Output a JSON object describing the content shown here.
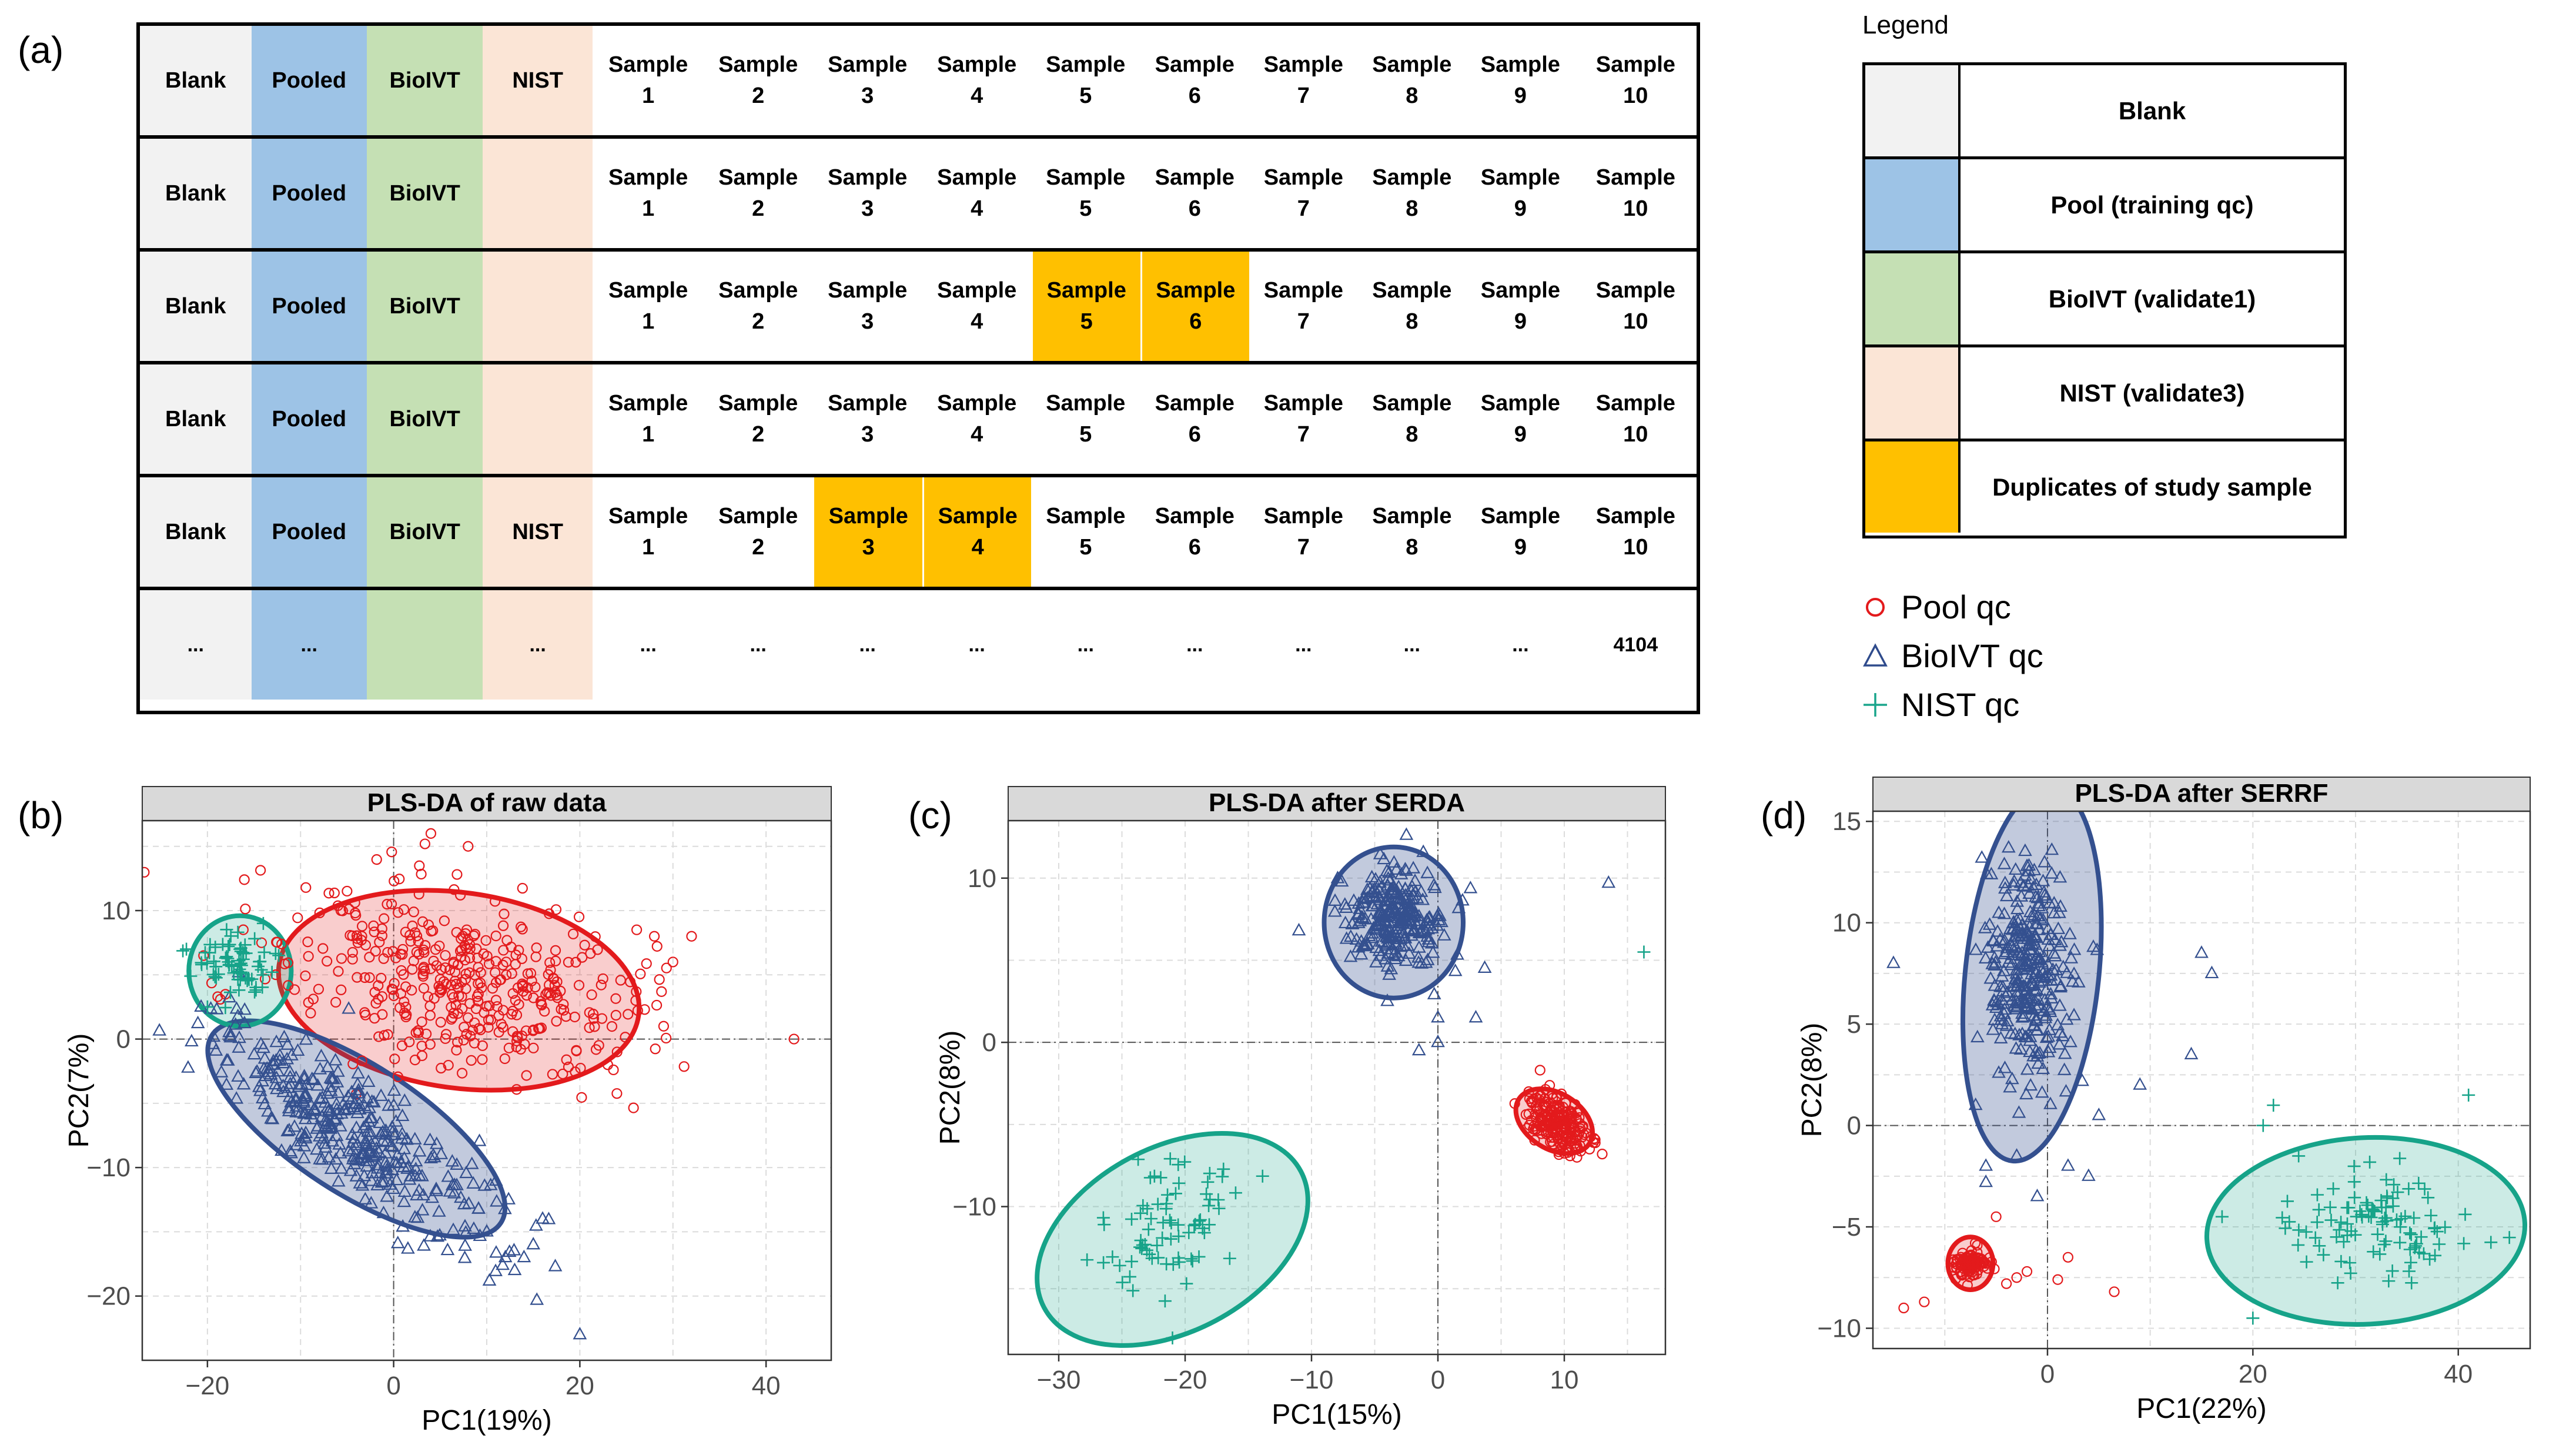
{
  "panel_labels": {
    "a": "(a)",
    "b": "(b)",
    "c": "(c)",
    "d": "(d)"
  },
  "plate": {
    "rows": [
      {
        "cells": [
          "Blank",
          "Pooled",
          "BioIVT",
          "NIST",
          "Sample\n1",
          "Sample\n2",
          "Sample\n3",
          "Sample\n4",
          "Sample\n5",
          "Sample\n6",
          "Sample\n7",
          "Sample\n8",
          "Sample\n9",
          "Sample\n10"
        ],
        "highlight": []
      },
      {
        "cells": [
          "Blank",
          "Pooled",
          "BioIVT",
          "",
          "Sample\n1",
          "Sample\n2",
          "Sample\n3",
          "Sample\n4",
          "Sample\n5",
          "Sample\n6",
          "Sample\n7",
          "Sample\n8",
          "Sample\n9",
          "Sample\n10"
        ],
        "highlight": []
      },
      {
        "cells": [
          "Blank",
          "Pooled",
          "BioIVT",
          "",
          "Sample\n1",
          "Sample\n2",
          "Sample\n3",
          "Sample\n4",
          "Sample\n5",
          "Sample\n6",
          "Sample\n7",
          "Sample\n8",
          "Sample\n9",
          "Sample\n10"
        ],
        "highlight": [
          8,
          9
        ]
      },
      {
        "cells": [
          "Blank",
          "Pooled",
          "BioIVT",
          "",
          "Sample\n1",
          "Sample\n2",
          "Sample\n3",
          "Sample\n4",
          "Sample\n5",
          "Sample\n6",
          "Sample\n7",
          "Sample\n8",
          "Sample\n9",
          "Sample\n10"
        ],
        "highlight": []
      },
      {
        "cells": [
          "Blank",
          "Pooled",
          "BioIVT",
          "NIST",
          "Sample\n1",
          "Sample\n2",
          "Sample\n3",
          "Sample\n4",
          "Sample\n5",
          "Sample\n6",
          "Sample\n7",
          "Sample\n8",
          "Sample\n9",
          "Sample\n10"
        ],
        "highlight": [
          6,
          7
        ]
      },
      {
        "cells": [
          "...",
          "...",
          "",
          "...",
          "...",
          "...",
          "...",
          "...",
          "...",
          "...",
          "...",
          "...",
          "...",
          "4104"
        ],
        "highlight": []
      }
    ],
    "column_colors": [
      "#f2f2f2",
      "#9dc3e6",
      "#c5e0b4",
      "#fbe5d6"
    ],
    "highlight_color": "#ffc000"
  },
  "legend": {
    "title": "Legend",
    "items": [
      {
        "label": "Blank",
        "color": "#f2f2f2"
      },
      {
        "label": "Pool (training qc)",
        "color": "#9dc3e6"
      },
      {
        "label": "BioIVT (validate1)",
        "color": "#c5e0b4"
      },
      {
        "label": "NIST (validate3)",
        "color": "#fbe5d6"
      },
      {
        "label": "Duplicates of study sample",
        "color": "#ffc000"
      }
    ]
  },
  "symbol_legend": [
    {
      "label": "Pool  qc",
      "symbol": "circle",
      "color": "#e31a1c"
    },
    {
      "label": "BioIVT qc",
      "symbol": "triangle",
      "color": "#2f4b8c"
    },
    {
      "label": "NIST qc",
      "symbol": "plus",
      "color": "#1aa58c"
    }
  ],
  "colors": {
    "pool": "#e31a1c",
    "bioivt": "#34508f",
    "nist": "#16a389",
    "grid": "#dcdcdc",
    "strip": "#d9d9d9"
  },
  "chart_data": [
    {
      "type": "scatter",
      "title": "PLS-DA of raw data",
      "xlabel": "PC1(19%)",
      "ylabel": "PC2(7%)",
      "xlim": [
        -27,
        47
      ],
      "ylim": [
        -25,
        17
      ],
      "xticks": [
        -20,
        0,
        20,
        40
      ],
      "yticks": [
        -20,
        -10,
        0,
        10
      ],
      "groups": [
        {
          "name": "Pool qc",
          "symbol": "circle",
          "n": 420,
          "center": [
            7,
            4.5
          ],
          "spread": [
            10,
            3.5
          ],
          "angle": -8,
          "ellipse": {
            "cx": 7,
            "cy": 3.8,
            "rx": 19.5,
            "ry": 7.6,
            "angle": -8
          },
          "outliers": [
            [
              4,
              16
            ],
            [
              8,
              15
            ],
            [
              28,
              8
            ],
            [
              30,
              6
            ],
            [
              32,
              8
            ],
            [
              26,
              3
            ],
            [
              29,
              1
            ],
            [
              24,
              -1
            ],
            [
              23,
              -2
            ],
            [
              43,
              0
            ]
          ]
        },
        {
          "name": "BioIVT qc",
          "symbol": "triangle",
          "n": 380,
          "center": [
            -5,
            -7
          ],
          "spread": [
            8.5,
            2.0
          ],
          "angle": -28,
          "ellipse": {
            "cx": -4,
            "cy": -7,
            "rx": 18.5,
            "ry": 5.0,
            "angle": -33
          },
          "outliers": [
            [
              10,
              -15
            ],
            [
              12,
              -17
            ],
            [
              14,
              -17
            ],
            [
              15,
              -16
            ],
            [
              13,
              -18
            ],
            [
              16,
              -14
            ],
            [
              20,
              -23
            ]
          ]
        },
        {
          "name": "NIST qc",
          "symbol": "plus",
          "n": 70,
          "center": [
            -17,
            5.5
          ],
          "spread": [
            2.3,
            1.3
          ],
          "angle": 0,
          "ellipse": {
            "cx": -16.5,
            "cy": 5.3,
            "rx": 5.5,
            "ry": 4.3,
            "angle": 0
          },
          "outliers": [
            [
              -20,
              2.5
            ],
            [
              -14,
              9
            ]
          ]
        }
      ]
    },
    {
      "type": "scatter",
      "title": "PLS-DA after SERDA",
      "xlabel": "PC1(15%)",
      "ylabel": "PC2(8%)",
      "xlim": [
        -34,
        18
      ],
      "ylim": [
        -19,
        13.5
      ],
      "xticks": [
        -30,
        -20,
        -10,
        0,
        10
      ],
      "yticks": [
        -10,
        0,
        10
      ],
      "groups": [
        {
          "name": "Pool qc",
          "symbol": "circle",
          "n": 200,
          "center": [
            9.5,
            -5
          ],
          "spread": [
            1.3,
            0.75
          ],
          "angle": -30,
          "ellipse": {
            "cx": 9.2,
            "cy": -4.8,
            "rx": 3.3,
            "ry": 1.7,
            "angle": -32
          },
          "outliers": [
            [
              12,
              -6.5
            ],
            [
              11,
              -7
            ],
            [
              13,
              -6.8
            ]
          ]
        },
        {
          "name": "BioIVT qc",
          "symbol": "triangle",
          "n": 280,
          "center": [
            -3.5,
            7.5
          ],
          "spread": [
            1.9,
            1.5
          ],
          "angle": 0,
          "ellipse": {
            "cx": -3.5,
            "cy": 7.3,
            "rx": 5.5,
            "ry": 4.6,
            "angle": 0
          },
          "outliers": [
            [
              -11,
              6.8
            ],
            [
              -4,
              2.5
            ],
            [
              0,
              1.5
            ],
            [
              0,
              0
            ],
            [
              3,
              1.5
            ],
            [
              -1.5,
              -0.5
            ],
            [
              13.5,
              9.7
            ]
          ]
        },
        {
          "name": "NIST qc",
          "symbol": "plus",
          "n": 75,
          "center": [
            -21.5,
            -11.5
          ],
          "spread": [
            3.2,
            1.9
          ],
          "angle": 28,
          "ellipse": {
            "cx": -21,
            "cy": -12,
            "rx": 11.5,
            "ry": 5.6,
            "angle": 28
          },
          "outliers": [
            [
              16.3,
              5.5
            ],
            [
              -21,
              -18
            ]
          ]
        }
      ]
    },
    {
      "type": "scatter",
      "title": "PLS-DA after SERRF",
      "xlabel": "PC1(22%)",
      "ylabel": "PC2(8%)",
      "xlim": [
        -17,
        47
      ],
      "ylim": [
        -11,
        15.5
      ],
      "xticks": [
        0,
        20,
        40
      ],
      "yticks": [
        -10,
        -5,
        0,
        5,
        10,
        15
      ],
      "groups": [
        {
          "name": "Pool qc",
          "symbol": "circle",
          "n": 110,
          "center": [
            -7.5,
            -6.8
          ],
          "spread": [
            0.9,
            0.35
          ],
          "angle": 0,
          "ellipse": {
            "cx": -7.5,
            "cy": -6.8,
            "rx": 2.2,
            "ry": 1.3,
            "angle": 0
          },
          "outliers": [
            [
              -14,
              -9
            ],
            [
              -12,
              -8.7
            ],
            [
              -4,
              -7.8
            ],
            [
              -3,
              -7.5
            ],
            [
              -2,
              -7.2
            ],
            [
              1,
              -7.6
            ],
            [
              2,
              -6.5
            ],
            [
              6.5,
              -8.2
            ],
            [
              -5,
              -4.5
            ]
          ]
        },
        {
          "name": "BioIVT qc",
          "symbol": "triangle",
          "n": 330,
          "center": [
            -1.8,
            7.5
          ],
          "spread": [
            2.0,
            2.7
          ],
          "angle": -6,
          "ellipse": {
            "cx": -1.5,
            "cy": 7.5,
            "rx": 6.5,
            "ry": 9.3,
            "angle": -6
          },
          "outliers": [
            [
              -15,
              8
            ],
            [
              15,
              8.5
            ],
            [
              16,
              7.5
            ],
            [
              14,
              3.5
            ],
            [
              9,
              2
            ],
            [
              5,
              0.5
            ],
            [
              -7,
              1
            ],
            [
              -3,
              -1.5
            ],
            [
              -6,
              -2
            ],
            [
              -6,
              -2.8
            ],
            [
              -1,
              -3.5
            ],
            [
              2,
              -2
            ],
            [
              4,
              -2.5
            ]
          ]
        },
        {
          "name": "NIST qc",
          "symbol": "plus",
          "n": 105,
          "center": [
            32,
            -4.8
          ],
          "spread": [
            4.5,
            1.3
          ],
          "angle": 0,
          "ellipse": {
            "cx": 31,
            "cy": -5.2,
            "rx": 15.5,
            "ry": 4.6,
            "angle": 3
          },
          "outliers": [
            [
              22,
              1
            ],
            [
              21,
              0
            ],
            [
              41,
              1.5
            ],
            [
              17,
              -4.5
            ],
            [
              20,
              -9.5
            ]
          ]
        }
      ]
    }
  ]
}
